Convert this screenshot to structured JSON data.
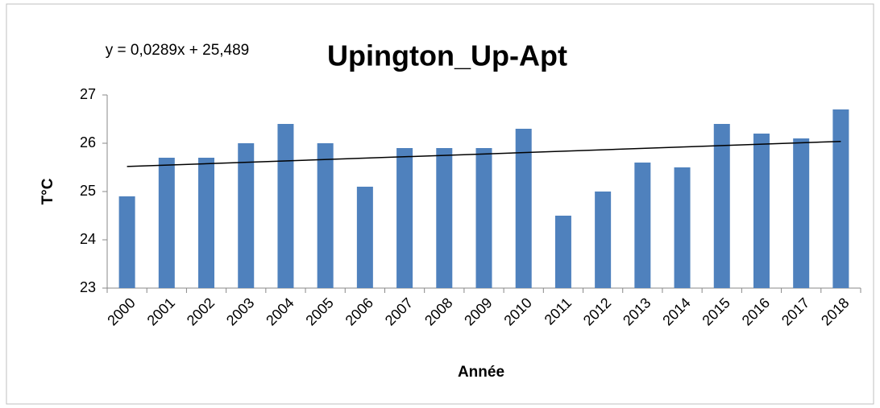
{
  "chart_data": {
    "type": "bar",
    "title": "Upington_Up-Apt",
    "x_label": "Année",
    "y_label": "T°C",
    "categories": [
      "2000",
      "2001",
      "2002",
      "2003",
      "2004",
      "2005",
      "2006",
      "2007",
      "2008",
      "2009",
      "2010",
      "2011",
      "2012",
      "2013",
      "2014",
      "2015",
      "2016",
      "2017",
      "2018"
    ],
    "values": [
      24.9,
      25.7,
      25.7,
      26.0,
      26.4,
      26.0,
      25.1,
      25.9,
      25.9,
      25.9,
      26.3,
      24.5,
      25.0,
      25.6,
      25.5,
      26.4,
      26.2,
      26.1,
      26.7
    ],
    "color": "#4f81bd",
    "ylim": [
      23,
      27
    ],
    "yticks": [
      23,
      24,
      25,
      26,
      27
    ],
    "grid": false,
    "trendline": {
      "label": "y = 0,0289x + 25,489",
      "slope": 0.0289,
      "intercept": 25.489,
      "color": "#000000"
    }
  }
}
